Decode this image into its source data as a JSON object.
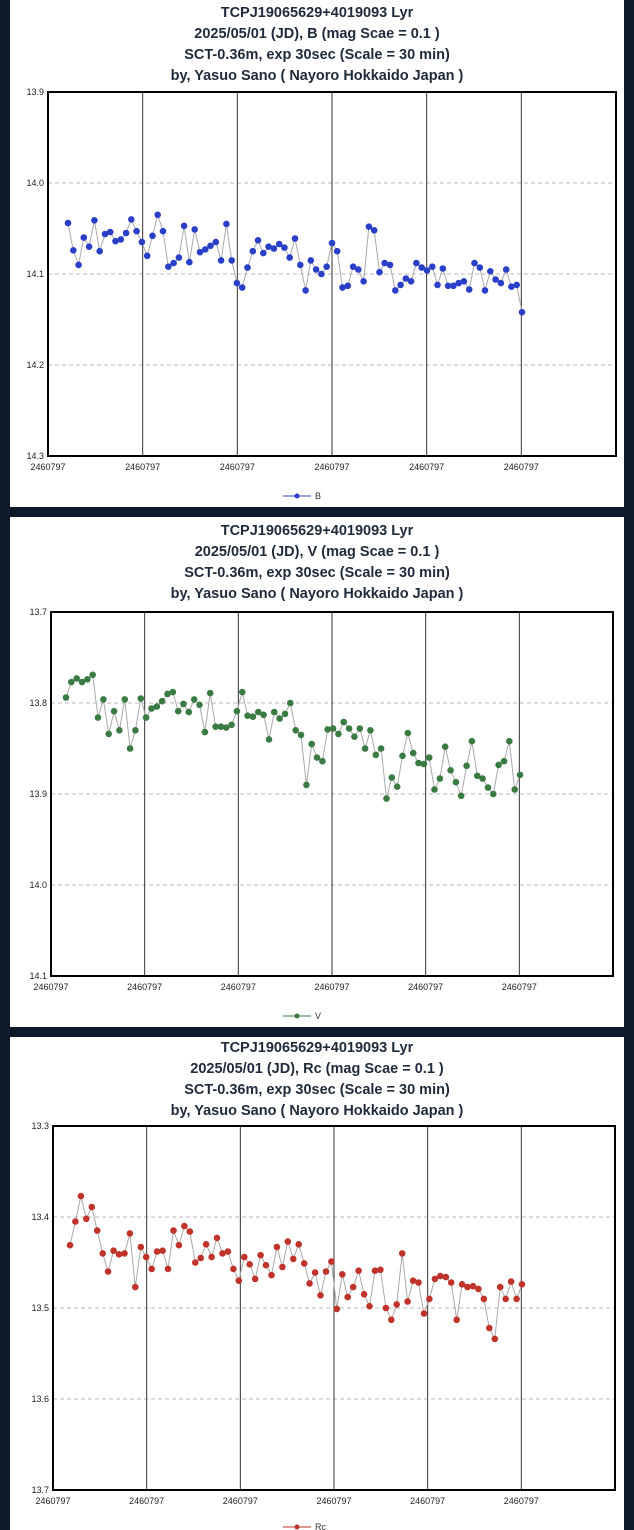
{
  "chart_data": [
    {
      "type": "line",
      "title_lines": [
        "TCPJ19065629+4019093 Lyr",
        "2025/05/01 (JD),  B (mag Scae = 0.1 )",
        "SCT-0.36m, exp 30sec (Scale = 30 min)",
        "by, Yasuo Sano ( Nayoro Hokkaido Japan )"
      ],
      "x_tick_labels": [
        "2460797",
        "2460797",
        "2460797",
        "2460797",
        "2460797",
        "2460797"
      ],
      "y_tick_labels": [
        "13.9",
        "14.0",
        "14.1",
        "14.2",
        "14.3"
      ],
      "ylim": [
        13.9,
        14.3
      ],
      "y_inverted": true,
      "grid": true,
      "legend_position": "bottom",
      "series": [
        {
          "name": "B",
          "color": "#2a3fc8",
          "values": [
            14.044,
            14.074,
            14.09,
            14.06,
            14.07,
            14.041,
            14.075,
            14.056,
            14.054,
            14.064,
            14.062,
            14.055,
            14.04,
            14.053,
            14.065,
            14.08,
            14.058,
            14.035,
            14.053,
            14.092,
            14.088,
            14.082,
            14.047,
            14.087,
            14.051,
            14.076,
            14.073,
            14.069,
            14.065,
            14.085,
            14.045,
            14.085,
            14.11,
            14.115,
            14.093,
            14.075,
            14.063,
            14.077,
            14.07,
            14.072,
            14.067,
            14.071,
            14.082,
            14.061,
            14.09,
            14.118,
            14.085,
            14.095,
            14.1,
            14.092,
            14.066,
            14.075,
            14.115,
            14.113,
            14.092,
            14.095,
            14.108,
            14.048,
            14.052,
            14.098,
            14.088,
            14.09,
            14.118,
            14.112,
            14.105,
            14.108,
            14.088,
            14.093,
            14.096,
            14.092,
            14.112,
            14.094,
            14.113,
            14.113,
            14.11,
            14.108,
            14.117,
            14.088,
            14.093,
            14.118,
            14.097,
            14.106,
            14.11,
            14.095,
            14.114,
            14.112,
            14.142
          ]
        }
      ]
    },
    {
      "type": "line",
      "title_lines": [
        "TCPJ19065629+4019093 Lyr",
        "2025/05/01 (JD),  V (mag Scae = 0.1 )",
        "SCT-0.36m, exp 30sec (Scale = 30 min)",
        "by, Yasuo Sano ( Nayoro Hokkaido Japan )"
      ],
      "x_tick_labels": [
        "2460797",
        "2460797",
        "2460797",
        "2460797",
        "2460797",
        "2460797"
      ],
      "y_tick_labels": [
        "13.7",
        "13.8",
        "13.9",
        "14.0",
        "14.1"
      ],
      "ylim": [
        13.7,
        14.1
      ],
      "y_inverted": true,
      "grid": true,
      "legend_position": "bottom",
      "series": [
        {
          "name": "V",
          "color": "#3a7a43",
          "values": [
            13.794,
            13.777,
            13.773,
            13.777,
            13.774,
            13.769,
            13.816,
            13.796,
            13.834,
            13.809,
            13.83,
            13.796,
            13.85,
            13.83,
            13.795,
            13.816,
            13.806,
            13.804,
            13.798,
            13.79,
            13.788,
            13.809,
            13.801,
            13.81,
            13.796,
            13.802,
            13.832,
            13.789,
            13.826,
            13.826,
            13.827,
            13.824,
            13.809,
            13.788,
            13.814,
            13.815,
            13.81,
            13.813,
            13.84,
            13.81,
            13.817,
            13.812,
            13.8,
            13.83,
            13.835,
            13.89,
            13.845,
            13.86,
            13.864,
            13.829,
            13.828,
            13.834,
            13.821,
            13.828,
            13.837,
            13.828,
            13.85,
            13.83,
            13.857,
            13.85,
            13.905,
            13.882,
            13.892,
            13.858,
            13.833,
            13.855,
            13.866,
            13.867,
            13.86,
            13.895,
            13.883,
            13.848,
            13.874,
            13.887,
            13.902,
            13.869,
            13.842,
            13.88,
            13.883,
            13.893,
            13.9,
            13.868,
            13.864,
            13.842,
            13.895,
            13.879
          ]
        }
      ]
    },
    {
      "type": "line",
      "title_lines": [
        "TCPJ19065629+4019093 Lyr",
        "2025/05/01 (JD),  Rc (mag Scae = 0.1 )",
        "SCT-0.36m, exp 30sec (Scale = 30 min)",
        "by, Yasuo Sano ( Nayoro Hokkaido Japan )"
      ],
      "x_tick_labels": [
        "2460797",
        "2460797",
        "2460797",
        "2460797",
        "2460797",
        "2460797"
      ],
      "y_tick_labels": [
        "13.3",
        "13.4",
        "13.5",
        "13.6",
        "13.7"
      ],
      "ylim": [
        13.3,
        13.7
      ],
      "y_inverted": true,
      "grid": true,
      "legend_position": "bottom",
      "series": [
        {
          "name": "Rc",
          "color": "#c0332b",
          "values": [
            13.431,
            13.405,
            13.377,
            13.402,
            13.389,
            13.415,
            13.44,
            13.46,
            13.437,
            13.441,
            13.44,
            13.418,
            13.477,
            13.433,
            13.444,
            13.457,
            13.438,
            13.437,
            13.457,
            13.415,
            13.431,
            13.41,
            13.416,
            13.45,
            13.445,
            13.43,
            13.444,
            13.423,
            13.44,
            13.438,
            13.457,
            13.47,
            13.444,
            13.452,
            13.468,
            13.442,
            13.453,
            13.464,
            13.433,
            13.455,
            13.427,
            13.446,
            13.43,
            13.451,
            13.473,
            13.461,
            13.486,
            13.46,
            13.449,
            13.501,
            13.463,
            13.488,
            13.477,
            13.459,
            13.485,
            13.498,
            13.459,
            13.458,
            13.5,
            13.513,
            13.496,
            13.44,
            13.493,
            13.47,
            13.472,
            13.506,
            13.49,
            13.468,
            13.465,
            13.466,
            13.472,
            13.513,
            13.474,
            13.477,
            13.476,
            13.479,
            13.49,
            13.522,
            13.534,
            13.477,
            13.49,
            13.471,
            13.49,
            13.474
          ]
        }
      ]
    }
  ]
}
